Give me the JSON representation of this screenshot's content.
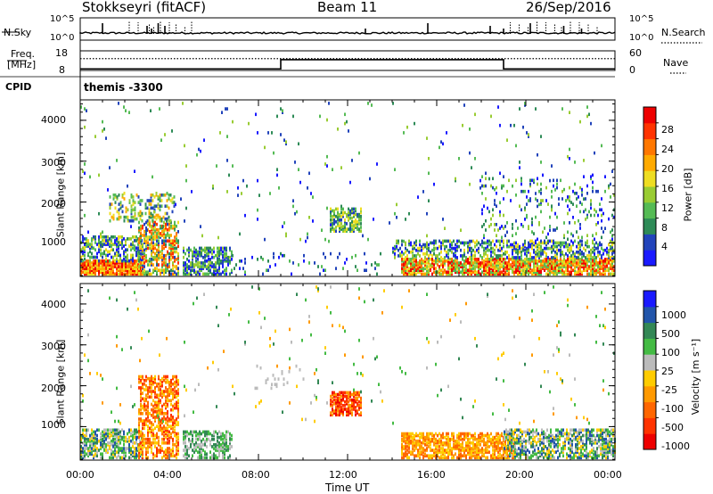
{
  "header": {
    "station": "Stokkseyri (fitACF)",
    "beam": "Beam 11",
    "date": "26/Sep/2016"
  },
  "top_panels": {
    "nsky_label": "N.Sky",
    "nsky_ticks": [
      "10^5",
      "10^0"
    ],
    "nsearch_label": "N.Search",
    "nsearch_ticks": [
      "10^5",
      "10^0"
    ],
    "freq_label_1": "Freq.",
    "freq_label_2": "[MHz]",
    "freq_ticks": [
      "18",
      "8"
    ],
    "nave_label": "Nave",
    "nave_ticks": [
      "60",
      "0"
    ],
    "cpid_label": "CPID",
    "cpid_value": "themis -3300",
    "freq_level_fraction": 0.42,
    "nave_levels": [
      {
        "from_hour": 0,
        "to_hour": 9.0,
        "fraction": 0.08
      },
      {
        "from_hour": 9.0,
        "to_hour": 19.0,
        "fraction": 0.55
      },
      {
        "from_hour": 19.0,
        "to_hour": 24,
        "fraction": 0.08
      }
    ]
  },
  "chart_data": [
    {
      "type": "heatmap",
      "name": "power",
      "ylabel": "Slant Range [km]",
      "xlim_hours": [
        0,
        24
      ],
      "ylim_km": [
        180,
        4500
      ],
      "yticks": [
        1000,
        2000,
        3000,
        4000
      ],
      "colorbar_label": "Power [dB]",
      "colorbar_ticks": [
        "28",
        "24",
        "20",
        "16",
        "12",
        "8",
        "4"
      ],
      "colors": [
        "#1a1aff",
        "#2244bb",
        "#2e8b57",
        "#55bb55",
        "#99cc33",
        "#eedd22",
        "#ffaa00",
        "#ff7700",
        "#ff3300",
        "#ee0000"
      ],
      "regions": [
        {
          "h0": 0.0,
          "h1": 2.8,
          "r0": 200,
          "r1": 520,
          "density": 0.9,
          "level": [
            5,
            9
          ]
        },
        {
          "h0": 0.0,
          "h1": 2.8,
          "r0": 520,
          "r1": 1150,
          "density": 0.45,
          "level": [
            0,
            5
          ]
        },
        {
          "h0": 2.6,
          "h1": 4.4,
          "r0": 200,
          "r1": 1500,
          "density": 0.55,
          "level": [
            1,
            8
          ]
        },
        {
          "h0": 1.3,
          "h1": 4.2,
          "r0": 1500,
          "r1": 2200,
          "density": 0.28,
          "level": [
            1,
            6
          ]
        },
        {
          "h0": 4.6,
          "h1": 6.8,
          "r0": 200,
          "r1": 850,
          "density": 0.55,
          "level": [
            0,
            4
          ]
        },
        {
          "h0": 6.8,
          "h1": 13.5,
          "r0": 200,
          "r1": 700,
          "density": 0.05,
          "level": [
            0,
            3
          ]
        },
        {
          "h0": 11.2,
          "h1": 12.6,
          "r0": 1250,
          "r1": 1800,
          "density": 0.6,
          "level": [
            1,
            5
          ]
        },
        {
          "h0": 14.4,
          "h1": 24.0,
          "r0": 200,
          "r1": 600,
          "density": 0.75,
          "level": [
            3,
            9
          ]
        },
        {
          "h0": 14.0,
          "h1": 24.0,
          "r0": 600,
          "r1": 1050,
          "density": 0.45,
          "level": [
            0,
            5
          ]
        },
        {
          "h0": 18.0,
          "h1": 24.0,
          "r0": 1050,
          "r1": 2600,
          "density": 0.08,
          "level": [
            0,
            4
          ]
        },
        {
          "h0": 0.0,
          "h1": 24.0,
          "r0": 1000,
          "r1": 4400,
          "density": 0.012,
          "level": [
            0,
            4
          ]
        }
      ]
    },
    {
      "type": "heatmap",
      "name": "velocity",
      "xlabel": "Time UT",
      "ylabel": "Slant Range [km]",
      "xlim_hours": [
        0,
        24
      ],
      "ylim_km": [
        180,
        4500
      ],
      "yticks": [
        1000,
        2000,
        3000,
        4000
      ],
      "xticks": [
        "00:00",
        "04:00",
        "08:00",
        "12:00",
        "16:00",
        "20:00",
        "00:00"
      ],
      "colorbar_label": "Velocity [m s⁻¹]",
      "colorbar_ticks": [
        "1000",
        "500",
        "100",
        "25",
        "-25",
        "-100",
        "-500",
        "-1000"
      ],
      "colors": [
        "#ee0000",
        "#ff3300",
        "#ff6600",
        "#ff9900",
        "#ffcc00",
        "#bbbbbb",
        "#44bb44",
        "#338855",
        "#2255aa",
        "#1a1aff"
      ],
      "regions": [
        {
          "h0": 0.0,
          "h1": 2.8,
          "r0": 200,
          "r1": 900,
          "density": 0.55,
          "level": [
            4,
            8
          ]
        },
        {
          "h0": 2.6,
          "h1": 4.4,
          "r0": 200,
          "r1": 2200,
          "density": 0.45,
          "level": [
            1,
            4
          ]
        },
        {
          "h0": 4.6,
          "h1": 6.8,
          "r0": 200,
          "r1": 850,
          "density": 0.45,
          "level": [
            5,
            7
          ]
        },
        {
          "h0": 11.2,
          "h1": 12.6,
          "r0": 1250,
          "r1": 1800,
          "density": 0.65,
          "level": [
            0,
            3
          ]
        },
        {
          "h0": 14.4,
          "h1": 19.5,
          "r0": 200,
          "r1": 800,
          "density": 0.65,
          "level": [
            2,
            4
          ]
        },
        {
          "h0": 19.0,
          "h1": 24.0,
          "r0": 200,
          "r1": 900,
          "density": 0.55,
          "level": [
            4,
            8
          ]
        },
        {
          "h0": 7.5,
          "h1": 10.0,
          "r0": 1900,
          "r1": 2500,
          "density": 0.04,
          "level": [
            5,
            5
          ]
        },
        {
          "h0": 0.0,
          "h1": 24.0,
          "r0": 1000,
          "r1": 4400,
          "density": 0.01,
          "level": [
            3,
            7
          ]
        }
      ]
    }
  ]
}
